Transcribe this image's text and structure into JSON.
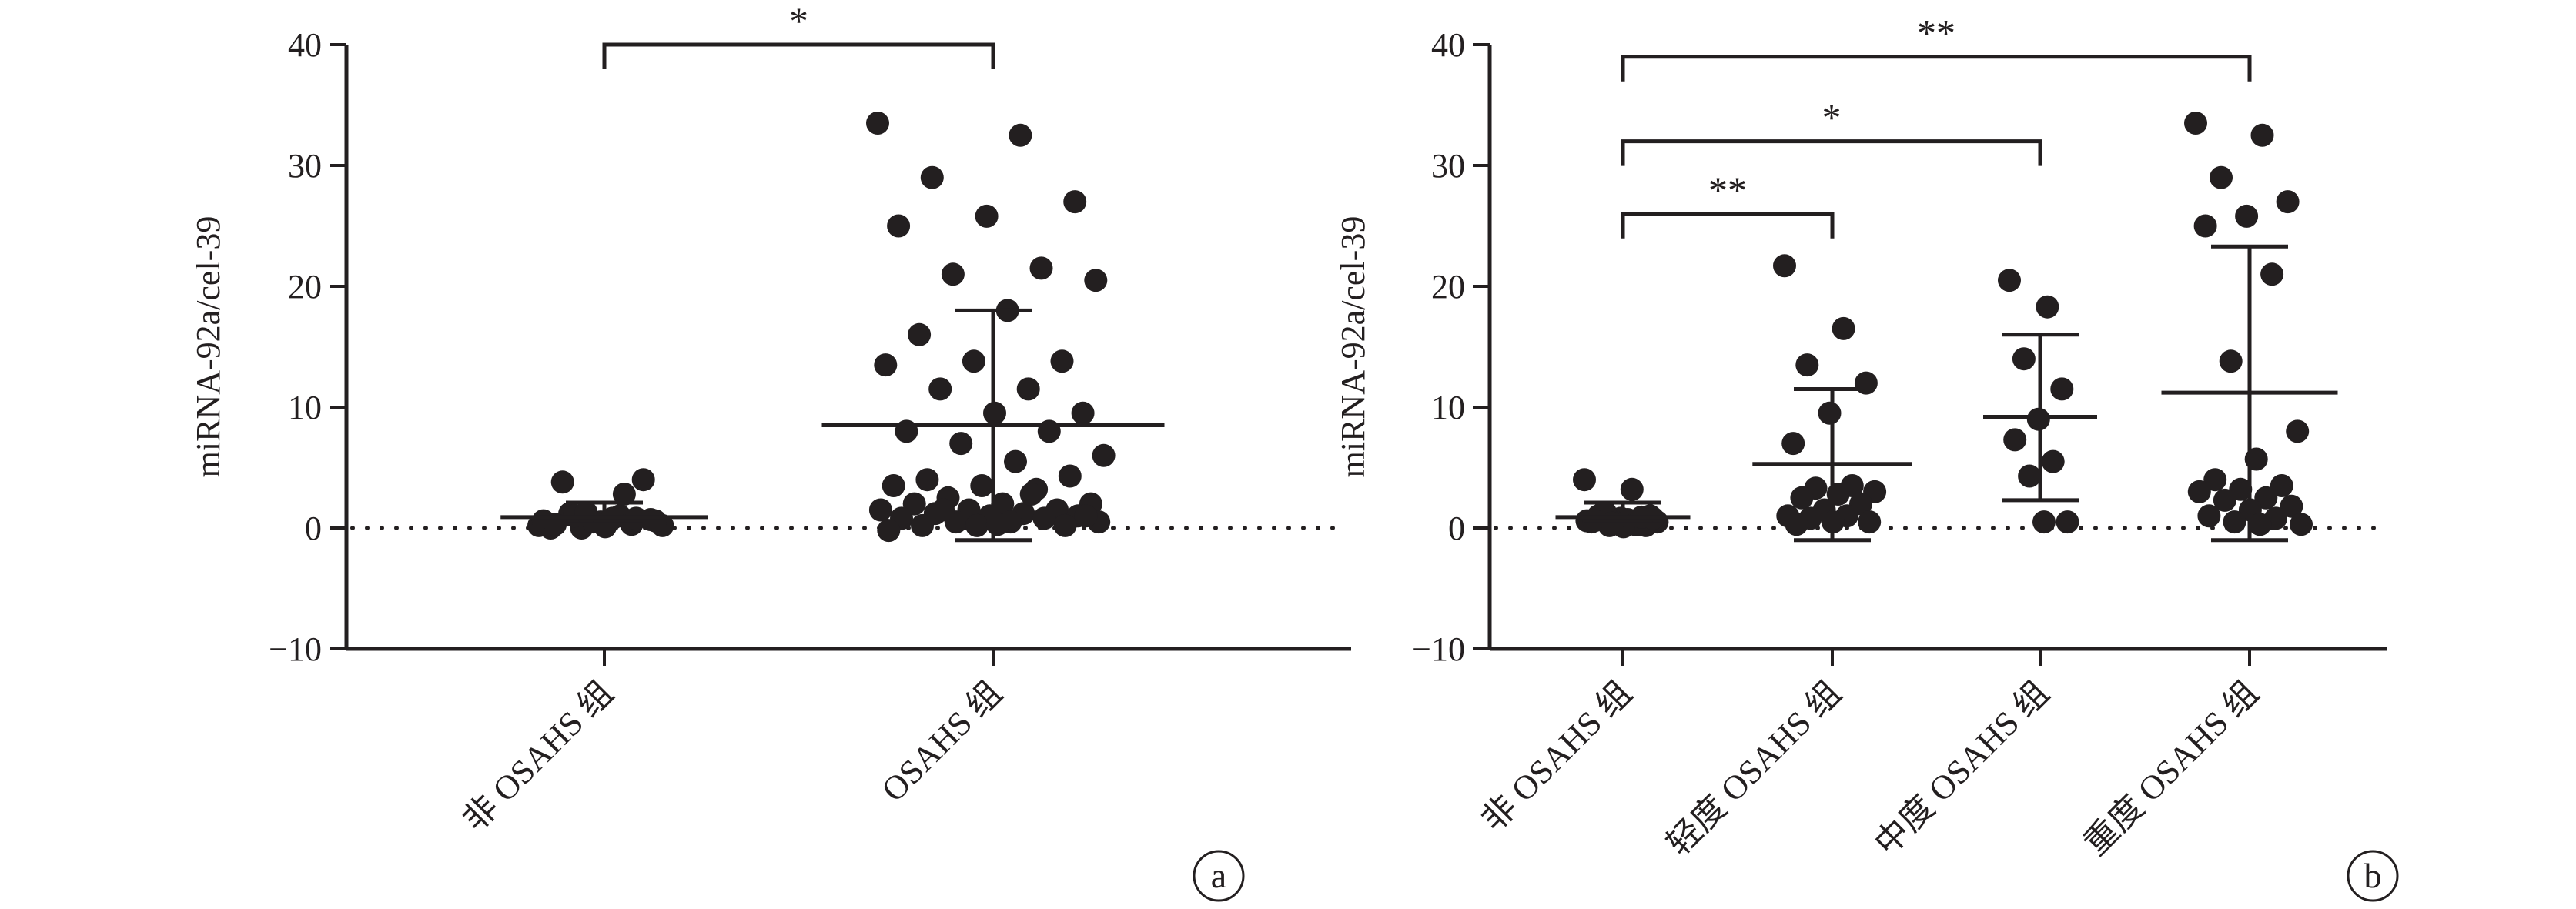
{
  "chart_data": [
    {
      "panel": "a",
      "type": "scatter",
      "ylabel": "miRNA-92a/cel-39",
      "ylim": [
        -10,
        40
      ],
      "yticks": [
        "40",
        "30",
        "20",
        "10",
        "0",
        "−10"
      ],
      "categories": [
        "非 OSAHS 组",
        "OSAHS 组"
      ],
      "reference_line_y": 0,
      "groups": [
        {
          "category": "非 OSAHS 组",
          "mean": 0.9,
          "sd_upper": 2.1,
          "sd_lower": 0.3,
          "values": [
            0.2,
            1.0,
            1.2,
            0.7,
            0.5,
            0.0,
            0.3,
            0.0,
            0.2,
            0.8,
            3.8,
            4.0,
            0.5,
            0.6,
            2.8,
            1.0,
            0.6,
            0.1,
            0.3,
            0.8,
            1.3
          ]
        },
        {
          "category": "OSAHS 组",
          "mean": 8.5,
          "sd_upper": 18.0,
          "sd_lower": -1.0,
          "values": [
            33.5,
            32.5,
            29.0,
            27.0,
            25.8,
            25.0,
            21.5,
            21.0,
            20.5,
            18.0,
            16.0,
            13.8,
            13.8,
            13.5,
            11.5,
            11.5,
            9.5,
            9.5,
            8.0,
            8.0,
            7.0,
            6.0,
            5.5,
            4.0,
            4.3,
            3.5,
            3.5,
            3.2,
            2.5,
            2.0,
            2.0,
            2.0,
            1.5,
            1.5,
            1.5,
            1.2,
            1.2,
            1.0,
            1.0,
            0.8,
            0.8,
            0.5,
            0.5,
            0.5,
            0.2,
            0.2,
            0.2,
            -0.2,
            2.8,
            1.5,
            1.0,
            0.3
          ]
        }
      ],
      "significance": [
        {
          "from": "非 OSAHS 组",
          "to": "OSAHS 组",
          "label": "*"
        }
      ]
    },
    {
      "panel": "b",
      "type": "scatter",
      "ylabel": "miRNA-92a/cel-39",
      "ylim": [
        -10,
        40
      ],
      "yticks": [
        "40",
        "30",
        "20",
        "10",
        "0",
        "−10"
      ],
      "categories": [
        "非 OSAHS 组",
        "轻度 OSAHS 组",
        "中度 OSAHS 组",
        "重度 OSAHS 组"
      ],
      "reference_line_y": 0,
      "groups": [
        {
          "category": "非 OSAHS 组",
          "mean": 0.9,
          "sd_upper": 2.1,
          "sd_lower": 0.3,
          "values": [
            4.0,
            3.2,
            1.2,
            1.0,
            0.8,
            0.5,
            0.3,
            0.2,
            0.5,
            0.7,
            1.0,
            0.2,
            0.4,
            0.6,
            0.3,
            1.3,
            0.8,
            0.1,
            0.6,
            0.9,
            0.4
          ]
        },
        {
          "category": "轻度 OSAHS 组",
          "mean": 5.3,
          "sd_upper": 11.5,
          "sd_lower": -1.0,
          "values": [
            21.7,
            16.5,
            13.5,
            12.0,
            9.5,
            7.0,
            3.5,
            3.3,
            3.0,
            2.8,
            2.5,
            2.0,
            1.5,
            1.0,
            1.0,
            0.8,
            0.5,
            0.5,
            0.3
          ]
        },
        {
          "category": "中度 OSAHS 组",
          "mean": 9.2,
          "sd_upper": 16.0,
          "sd_lower": 2.3,
          "values": [
            20.5,
            18.3,
            14.0,
            11.5,
            9.0,
            7.3,
            5.5,
            4.3,
            0.5,
            0.5
          ]
        },
        {
          "category": "重度 OSAHS 组",
          "mean": 11.2,
          "sd_upper": 23.3,
          "sd_lower": -1.0,
          "values": [
            33.5,
            32.5,
            29.0,
            27.0,
            25.8,
            25.0,
            21.0,
            13.8,
            8.0,
            5.7,
            4.0,
            3.5,
            3.2,
            3.0,
            2.5,
            2.3,
            1.8,
            1.5,
            1.0,
            0.8,
            0.5,
            0.3,
            0.3
          ]
        }
      ],
      "significance": [
        {
          "from": "非 OSAHS 组",
          "to": "重度 OSAHS 组",
          "label": "**"
        },
        {
          "from": "非 OSAHS 组",
          "to": "中度 OSAHS 组",
          "label": "*"
        },
        {
          "from": "非 OSAHS 组",
          "to": "轻度 OSAHS 组",
          "label": "**"
        }
      ]
    }
  ]
}
